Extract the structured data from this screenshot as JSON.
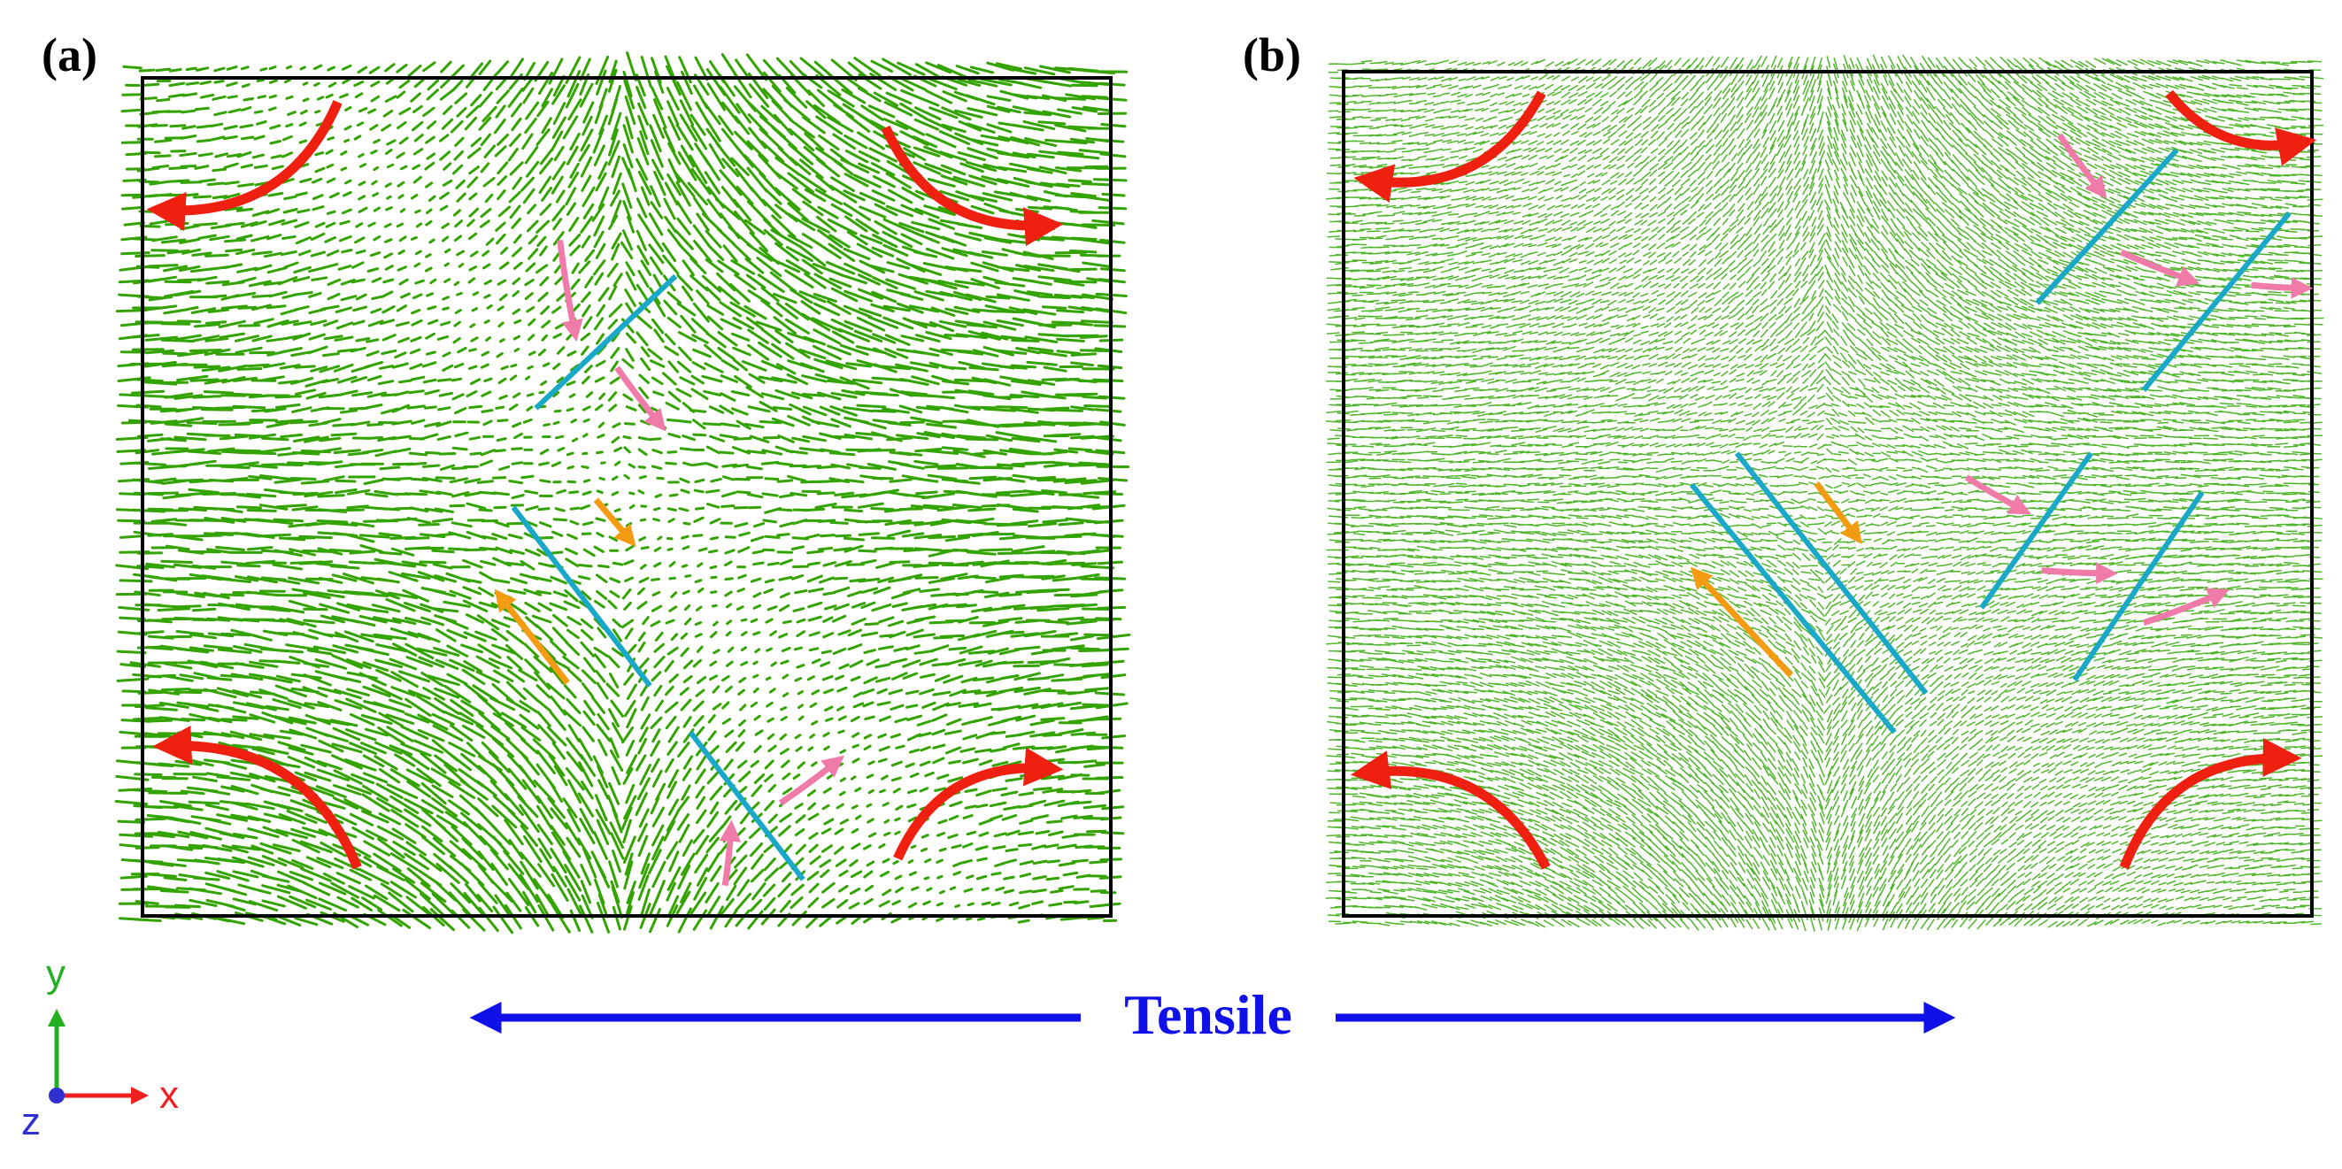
{
  "panels": [
    {
      "label": "(a)"
    },
    {
      "label": "(b)"
    }
  ],
  "tensile_label": "Tensile",
  "axes": {
    "x": "x",
    "y": "y",
    "z": "z"
  }
}
